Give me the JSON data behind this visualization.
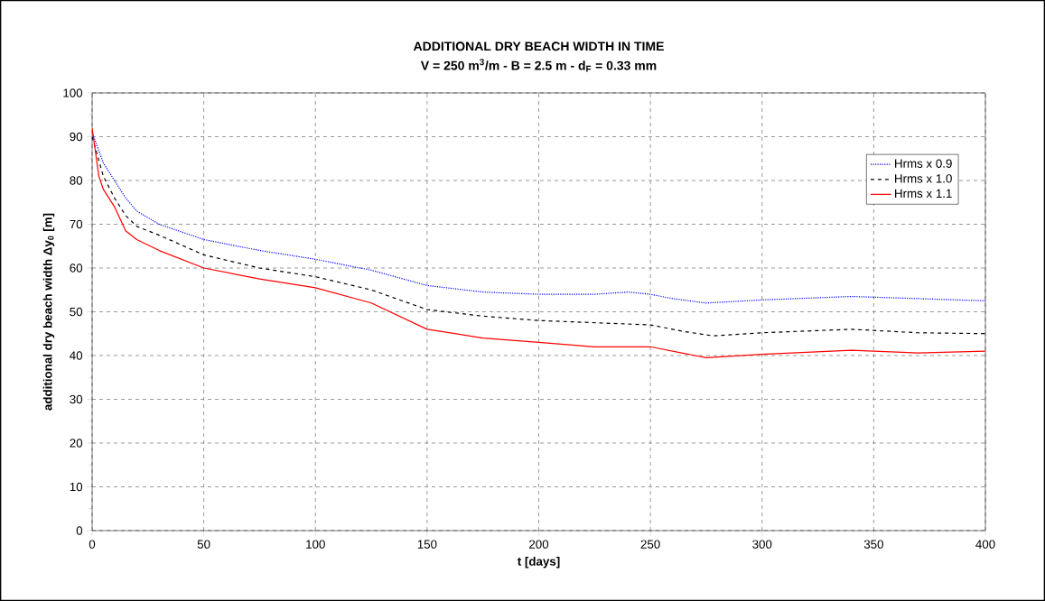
{
  "chart_data": {
    "type": "line",
    "title": "ADDITIONAL DRY BEACH WIDTH IN TIME",
    "subtitle": "V = 250 m$^{3}$/m - B = 2.5 m - d$_{F}$ = 0.33 mm",
    "xlabel": "t [days]",
    "ylabel": "additional dry beach width Δy$_{0}$ [m]",
    "xlim": [
      0,
      400
    ],
    "ylim": [
      0,
      100
    ],
    "xticks": [
      0,
      50,
      100,
      150,
      200,
      250,
      300,
      350,
      400
    ],
    "yticks": [
      0,
      10,
      20,
      30,
      40,
      50,
      60,
      70,
      80,
      90,
      100
    ],
    "grid": true,
    "legend": "top right",
    "marker": "none",
    "series": [
      {
        "name": "Hrms x 0.9",
        "color": "#0000ff",
        "line_style": "dotted",
        "x": [
          0,
          5,
          10,
          15,
          20,
          30,
          50,
          75,
          100,
          125,
          150,
          175,
          200,
          225,
          240,
          250,
          260,
          275,
          300,
          340,
          370,
          400
        ],
        "values": [
          91,
          84,
          80,
          76,
          73,
          70,
          66.5,
          64,
          62,
          59.5,
          56,
          54.5,
          54,
          54,
          54.5,
          54,
          53,
          52,
          52.7,
          53.5,
          53,
          52.5
        ]
      },
      {
        "name": "Hrms x 1.0",
        "color": "#000000",
        "line_style": "dashed",
        "x": [
          0,
          5,
          10,
          15,
          20,
          30,
          50,
          75,
          100,
          125,
          150,
          175,
          200,
          225,
          250,
          265,
          278,
          300,
          340,
          370,
          400
        ],
        "values": [
          90,
          81,
          76,
          72,
          69.5,
          67.5,
          63,
          60,
          58,
          55,
          50.5,
          49,
          48,
          47.5,
          47,
          45.5,
          44.5,
          45.2,
          46,
          45.2,
          45
        ]
      },
      {
        "name": "Hrms x 1.1",
        "color": "#ff0000",
        "line_style": "solid",
        "x": [
          0,
          3,
          5,
          10,
          15,
          20,
          30,
          50,
          75,
          100,
          125,
          150,
          175,
          200,
          225,
          250,
          265,
          275,
          300,
          340,
          370,
          400
        ],
        "values": [
          92,
          81,
          78,
          74,
          68.5,
          66.5,
          64,
          60,
          57.5,
          55.5,
          52,
          46,
          44,
          43,
          42,
          42,
          40.5,
          39.5,
          40.3,
          41.2,
          40.6,
          41
        ]
      }
    ]
  }
}
